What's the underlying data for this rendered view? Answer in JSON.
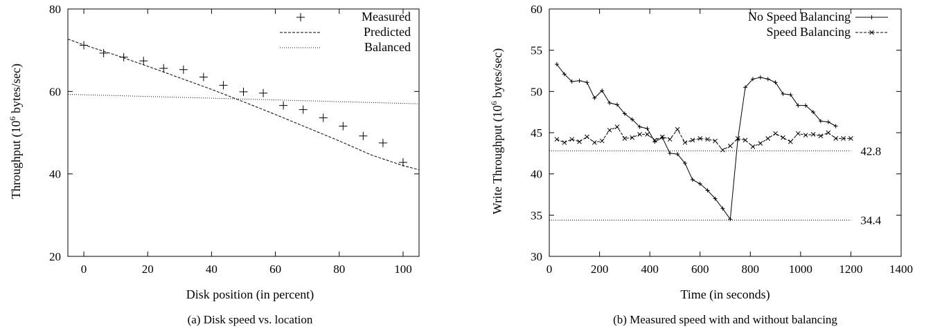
{
  "chart_data": [
    {
      "type": "scatter",
      "caption": "(a)  Disk speed vs. location",
      "xlabel": "Disk position (in percent)",
      "ylabel_prefix": "Throughput (10",
      "ylabel_sup": "6",
      "ylabel_suffix": " bytes/sec)",
      "xlim": [
        -5,
        105
      ],
      "ylim": [
        20,
        80
      ],
      "xticks": [
        0,
        20,
        40,
        60,
        80,
        100
      ],
      "yticks": [
        20,
        40,
        60,
        80
      ],
      "legend_position": "top-right",
      "series": [
        {
          "name": "Measured",
          "style": "plus-markers",
          "points": [
            [
              0,
              71.2
            ],
            [
              6.2,
              69.3
            ],
            [
              12.5,
              68.3
            ],
            [
              18.7,
              67.4
            ],
            [
              25,
              65.6
            ],
            [
              31.2,
              65.3
            ],
            [
              37.5,
              63.5
            ],
            [
              43.7,
              61.5
            ],
            [
              50,
              59.9
            ],
            [
              56.2,
              59.6
            ],
            [
              62.5,
              56.6
            ],
            [
              68.7,
              55.6
            ],
            [
              75,
              53.6
            ],
            [
              81.2,
              51.6
            ],
            [
              87.5,
              49.2
            ],
            [
              93.7,
              47.5
            ],
            [
              100,
              42.8
            ]
          ]
        },
        {
          "name": "Predicted",
          "style": "dashed-line",
          "points": [
            [
              -5,
              72.7
            ],
            [
              0,
              71.3
            ],
            [
              10,
              68.8
            ],
            [
              20,
              66.1
            ],
            [
              30,
              63.3
            ],
            [
              40,
              60.5
            ],
            [
              50,
              57.5
            ],
            [
              60,
              54.4
            ],
            [
              70,
              51.2
            ],
            [
              80,
              48.0
            ],
            [
              90,
              44.6
            ],
            [
              100,
              42.0
            ],
            [
              105,
              41.0
            ]
          ]
        },
        {
          "name": "Balanced",
          "style": "dotted-line",
          "points": [
            [
              -5,
              59.3
            ],
            [
              105,
              57.0
            ]
          ]
        }
      ]
    },
    {
      "type": "line",
      "caption": "(b)  Measured speed with and without balancing",
      "xlabel": "Time (in seconds)",
      "ylabel_prefix": "Write Throughput (10",
      "ylabel_sup": "6",
      "ylabel_suffix": " bytes/sec)",
      "xlim": [
        0,
        1400
      ],
      "ylim": [
        30,
        60
      ],
      "xticks": [
        0,
        200,
        400,
        600,
        800,
        1000,
        1200,
        1400
      ],
      "yticks": [
        30,
        35,
        40,
        45,
        50,
        55,
        60
      ],
      "legend_position": "top-right",
      "series": [
        {
          "name": "No Speed Balancing",
          "style": "solid-plus",
          "points": [
            [
              30,
              53.3
            ],
            [
              60,
              52.1
            ],
            [
              90,
              51.2
            ],
            [
              120,
              51.3
            ],
            [
              150,
              51.1
            ],
            [
              180,
              49.2
            ],
            [
              210,
              50.1
            ],
            [
              240,
              48.6
            ],
            [
              270,
              48.4
            ],
            [
              300,
              47.3
            ],
            [
              330,
              46.6
            ],
            [
              360,
              45.7
            ],
            [
              390,
              45.5
            ],
            [
              420,
              43.9
            ],
            [
              450,
              44.4
            ],
            [
              480,
              42.5
            ],
            [
              510,
              42.4
            ],
            [
              540,
              41.3
            ],
            [
              570,
              39.3
            ],
            [
              600,
              38.8
            ],
            [
              630,
              38.0
            ],
            [
              660,
              37.0
            ],
            [
              690,
              35.8
            ],
            [
              720,
              34.5
            ],
            [
              750,
              44.1
            ],
            [
              780,
              50.5
            ],
            [
              810,
              51.5
            ],
            [
              840,
              51.7
            ],
            [
              870,
              51.5
            ],
            [
              900,
              51.1
            ],
            [
              930,
              49.7
            ],
            [
              960,
              49.6
            ],
            [
              990,
              48.3
            ],
            [
              1020,
              48.3
            ],
            [
              1050,
              47.5
            ],
            [
              1080,
              46.4
            ],
            [
              1110,
              46.3
            ],
            [
              1140,
              45.8
            ]
          ]
        },
        {
          "name": "Speed Balancing",
          "style": "dashed-x",
          "points": [
            [
              30,
              44.2
            ],
            [
              60,
              43.8
            ],
            [
              90,
              44.2
            ],
            [
              120,
              43.9
            ],
            [
              150,
              44.5
            ],
            [
              180,
              43.8
            ],
            [
              210,
              44.0
            ],
            [
              240,
              45.3
            ],
            [
              270,
              45.7
            ],
            [
              300,
              44.3
            ],
            [
              330,
              44.4
            ],
            [
              360,
              44.8
            ],
            [
              390,
              44.8
            ],
            [
              420,
              44.1
            ],
            [
              450,
              44.5
            ],
            [
              480,
              44.2
            ],
            [
              510,
              45.4
            ],
            [
              540,
              43.8
            ],
            [
              570,
              44.1
            ],
            [
              600,
              44.3
            ],
            [
              630,
              44.2
            ],
            [
              660,
              44.0
            ],
            [
              690,
              42.9
            ],
            [
              720,
              43.4
            ],
            [
              750,
              44.3
            ],
            [
              780,
              44.1
            ],
            [
              810,
              43.3
            ],
            [
              840,
              43.7
            ],
            [
              870,
              44.3
            ],
            [
              900,
              44.9
            ],
            [
              930,
              44.4
            ],
            [
              960,
              43.9
            ],
            [
              990,
              44.9
            ],
            [
              1020,
              44.7
            ],
            [
              1050,
              44.8
            ],
            [
              1080,
              44.6
            ],
            [
              1110,
              45.0
            ],
            [
              1140,
              44.3
            ],
            [
              1170,
              44.3
            ],
            [
              1200,
              44.3
            ]
          ]
        }
      ],
      "reference_lines": [
        {
          "y": 42.8,
          "x_from": 0,
          "x_to": 1200,
          "label": "42.8"
        },
        {
          "y": 34.4,
          "x_from": 0,
          "x_to": 1200,
          "label": "34.4"
        }
      ]
    }
  ]
}
